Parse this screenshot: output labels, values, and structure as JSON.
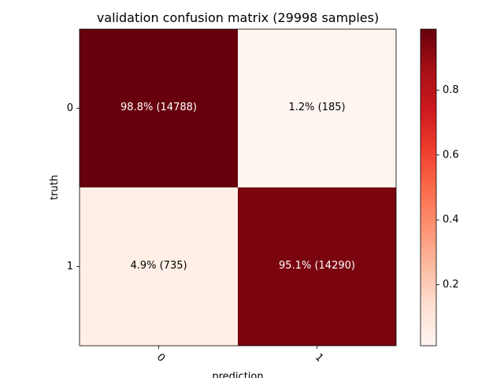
{
  "chart_data": {
    "type": "heatmap",
    "title": "validation confusion matrix (29998 samples)",
    "xlabel": "prediction",
    "ylabel": "truth",
    "x_categories": [
      "0",
      "1"
    ],
    "y_categories": [
      "0",
      "1"
    ],
    "values": [
      [
        0.988,
        0.012
      ],
      [
        0.049,
        0.951
      ]
    ],
    "cell_labels": [
      [
        "98.8% (14788)",
        "1.2% (185)"
      ],
      [
        "4.9% (735)",
        "95.1% (14290)"
      ]
    ],
    "colormap": "Reds",
    "colorbar": {
      "range": [
        0.012,
        0.988
      ],
      "ticks": [
        0.2,
        0.4,
        0.6,
        0.8
      ],
      "tick_labels": [
        "0.2",
        "0.4",
        "0.6",
        "0.8"
      ]
    },
    "grid": false
  }
}
